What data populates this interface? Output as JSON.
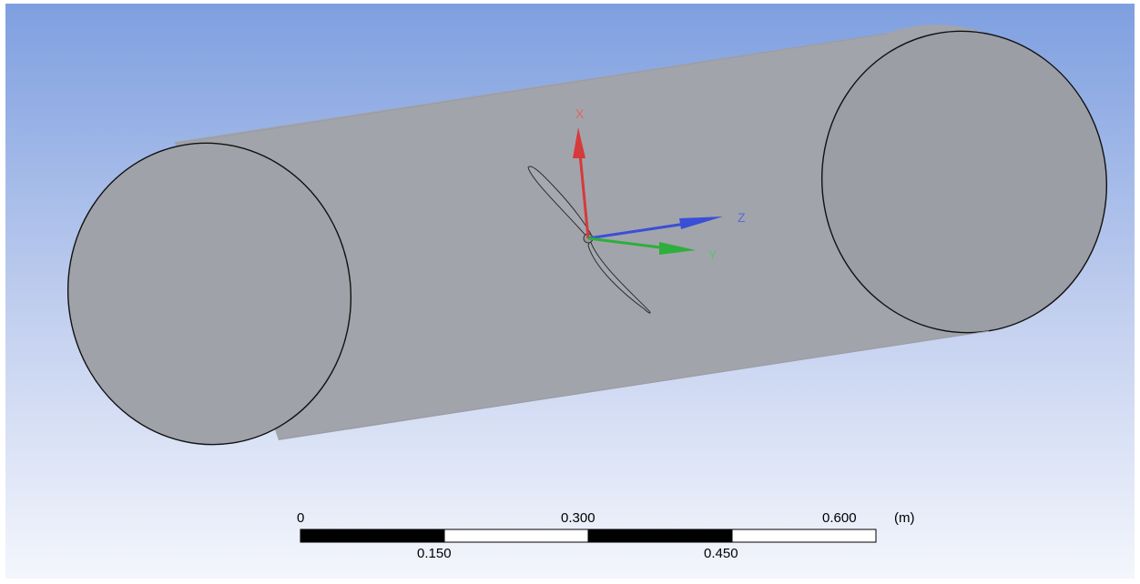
{
  "triad": {
    "x_label": "X",
    "y_label": "Y",
    "z_label": "Z",
    "x_color": "#d63a3a",
    "y_color": "#2eae3c",
    "z_color": "#3a4fd6"
  },
  "scale_bar": {
    "tick_labels_top": [
      "0",
      "0.300",
      "0.600"
    ],
    "tick_labels_bottom": [
      "0.150",
      "0.450"
    ],
    "unit": "(m)"
  },
  "colors": {
    "background_top": "#7e9fe0",
    "background_bottom": "#f4f6fc",
    "body_fill": "#a2a4ab",
    "edge": "#111111"
  }
}
